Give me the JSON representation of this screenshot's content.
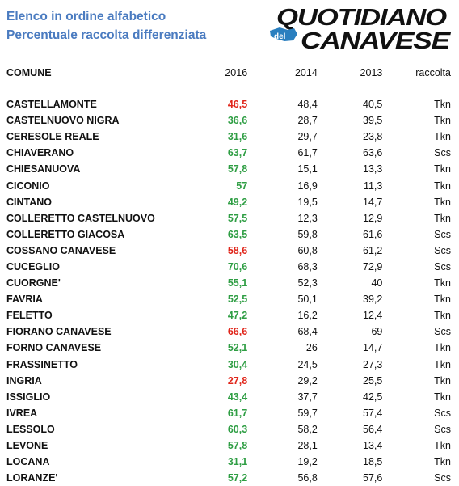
{
  "heading": {
    "line1": "Elenco in ordine alfabetico",
    "line2": "Percentuale raccolta differenziata"
  },
  "logo": {
    "word1": "QUOTIDIANO",
    "small": "del",
    "word2": "CANAVESE"
  },
  "colors": {
    "heading": "#4a7bc0",
    "good": "#2f9e44",
    "bad": "#e0261b"
  },
  "columns": [
    "COMUNE",
    "2016",
    "2014",
    "2013",
    "raccolta"
  ],
  "rows": [
    {
      "comune": "CASTELLAMONTE",
      "y2016": "46,5",
      "status": "red",
      "y2014": "48,4",
      "y2013": "40,5",
      "raccolta": "Tkn"
    },
    {
      "comune": "CASTELNUOVO NIGRA",
      "y2016": "36,6",
      "status": "green",
      "y2014": "28,7",
      "y2013": "39,5",
      "raccolta": "Tkn"
    },
    {
      "comune": "CERESOLE REALE",
      "y2016": "31,6",
      "status": "green",
      "y2014": "29,7",
      "y2013": "23,8",
      "raccolta": "Tkn"
    },
    {
      "comune": "CHIAVERANO",
      "y2016": "63,7",
      "status": "green",
      "y2014": "61,7",
      "y2013": "63,6",
      "raccolta": "Scs"
    },
    {
      "comune": "CHIESANUOVA",
      "y2016": "57,8",
      "status": "green",
      "y2014": "15,1",
      "y2013": "13,3",
      "raccolta": "Tkn"
    },
    {
      "comune": "CICONIO",
      "y2016": "57",
      "status": "green",
      "y2014": "16,9",
      "y2013": "11,3",
      "raccolta": "Tkn"
    },
    {
      "comune": "CINTANO",
      "y2016": "49,2",
      "status": "green",
      "y2014": "19,5",
      "y2013": "14,7",
      "raccolta": "Tkn"
    },
    {
      "comune": "COLLERETTO CASTELNUOVO",
      "y2016": "57,5",
      "status": "green",
      "y2014": "12,3",
      "y2013": "12,9",
      "raccolta": "Tkn"
    },
    {
      "comune": "COLLERETTO GIACOSA",
      "y2016": "63,5",
      "status": "green",
      "y2014": "59,8",
      "y2013": "61,6",
      "raccolta": "Scs"
    },
    {
      "comune": "COSSANO CANAVESE",
      "y2016": "58,6",
      "status": "red",
      "y2014": "60,8",
      "y2013": "61,2",
      "raccolta": "Scs"
    },
    {
      "comune": "CUCEGLIO",
      "y2016": "70,6",
      "status": "green",
      "y2014": "68,3",
      "y2013": "72,9",
      "raccolta": "Scs"
    },
    {
      "comune": "CUORGNE'",
      "y2016": "55,1",
      "status": "green",
      "y2014": "52,3",
      "y2013": "40",
      "raccolta": "Tkn"
    },
    {
      "comune": "FAVRIA",
      "y2016": "52,5",
      "status": "green",
      "y2014": "50,1",
      "y2013": "39,2",
      "raccolta": "Tkn"
    },
    {
      "comune": "FELETTO",
      "y2016": "47,2",
      "status": "green",
      "y2014": "16,2",
      "y2013": "12,4",
      "raccolta": "Tkn"
    },
    {
      "comune": "FIORANO CANAVESE",
      "y2016": "66,6",
      "status": "red",
      "y2014": "68,4",
      "y2013": "69",
      "raccolta": "Scs"
    },
    {
      "comune": "FORNO CANAVESE",
      "y2016": "52,1",
      "status": "green",
      "y2014": "26",
      "y2013": "14,7",
      "raccolta": "Tkn"
    },
    {
      "comune": "FRASSINETTO",
      "y2016": "30,4",
      "status": "green",
      "y2014": "24,5",
      "y2013": "27,3",
      "raccolta": "Tkn"
    },
    {
      "comune": "INGRIA",
      "y2016": "27,8",
      "status": "red",
      "y2014": "29,2",
      "y2013": "25,5",
      "raccolta": "Tkn"
    },
    {
      "comune": "ISSIGLIO",
      "y2016": "43,4",
      "status": "green",
      "y2014": "37,7",
      "y2013": "42,5",
      "raccolta": "Tkn"
    },
    {
      "comune": "IVREA",
      "y2016": "61,7",
      "status": "green",
      "y2014": "59,7",
      "y2013": "57,4",
      "raccolta": "Scs"
    },
    {
      "comune": "LESSOLO",
      "y2016": "60,3",
      "status": "green",
      "y2014": "58,2",
      "y2013": "56,4",
      "raccolta": "Scs"
    },
    {
      "comune": "LEVONE",
      "y2016": "57,8",
      "status": "green",
      "y2014": "28,1",
      "y2013": "13,4",
      "raccolta": "Tkn"
    },
    {
      "comune": "LOCANA",
      "y2016": "31,1",
      "status": "green",
      "y2014": "19,2",
      "y2013": "18,5",
      "raccolta": "Tkn"
    },
    {
      "comune": "LORANZE'",
      "y2016": "57,2",
      "status": "green",
      "y2014": "56,8",
      "y2013": "57,6",
      "raccolta": "Scs"
    }
  ]
}
